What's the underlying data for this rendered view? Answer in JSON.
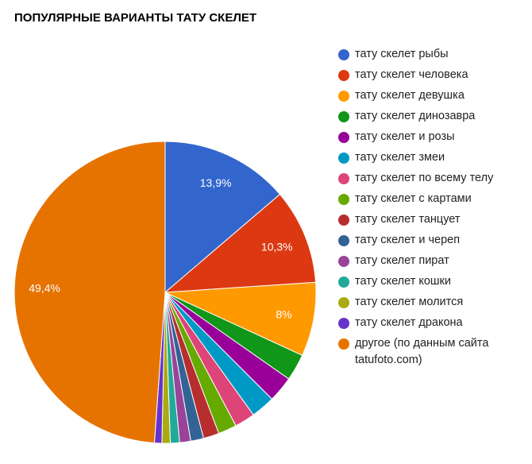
{
  "chart_data": {
    "type": "pie",
    "title": "ПОПУЛЯРНЫЕ ВАРИАНТЫ ТАТУ СКЕЛЕТ",
    "legend_position": "right",
    "slices": [
      {
        "label": "тату скелет рыбы",
        "value": 13.9,
        "display": "13,9%",
        "color": "#3366cc"
      },
      {
        "label": "тату скелет человека",
        "value": 10.3,
        "display": "10,3%",
        "color": "#dc3912"
      },
      {
        "label": "тату скелет девушка",
        "value": 8.0,
        "display": "8%",
        "color": "#ff9900"
      },
      {
        "label": "тату скелет динозавра",
        "value": 2.9,
        "display": "",
        "color": "#109618"
      },
      {
        "label": "тату скелет и розы",
        "value": 2.8,
        "display": "",
        "color": "#990099"
      },
      {
        "label": "тату скелет змеи",
        "value": 2.6,
        "display": "",
        "color": "#0099c6"
      },
      {
        "label": "тату скелет по всему телу",
        "value": 2.2,
        "display": "",
        "color": "#dd4477"
      },
      {
        "label": "тату скелет с картами",
        "value": 2.0,
        "display": "",
        "color": "#66aa00"
      },
      {
        "label": "тату скелет танцует",
        "value": 1.7,
        "display": "",
        "color": "#b82e2e"
      },
      {
        "label": "тату скелет и череп",
        "value": 1.4,
        "display": "",
        "color": "#316395"
      },
      {
        "label": "тату скелет пират",
        "value": 1.2,
        "display": "",
        "color": "#994499"
      },
      {
        "label": "тату скелет кошки",
        "value": 1.0,
        "display": "",
        "color": "#22aa99"
      },
      {
        "label": "тату скелет молится",
        "value": 0.9,
        "display": "",
        "color": "#aaaa11"
      },
      {
        "label": "тату скелет дракона",
        "value": 0.8,
        "display": "",
        "color": "#6633cc"
      },
      {
        "label": "другое (по данным сайта tatufoto.com)",
        "value": 49.4,
        "display": "49,4%",
        "color": "#e67300"
      }
    ]
  }
}
